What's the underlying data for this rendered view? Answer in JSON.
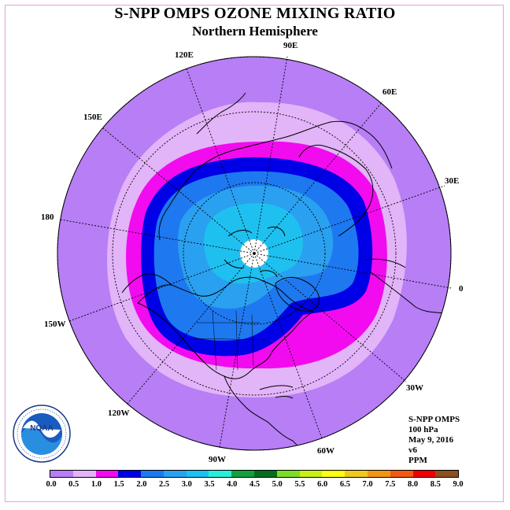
{
  "title": "S-NPP OMPS OZONE MIXING RATIO",
  "subtitle": "Northern Hemisphere",
  "longitude_labels": [
    "90E",
    "60E",
    "30E",
    "0",
    "30W",
    "60W",
    "90W",
    "120W",
    "150W",
    "180",
    "150E",
    "120E"
  ],
  "info": {
    "instrument": "S-NPP OMPS",
    "level": "100 hPa",
    "date": "May 9, 2016",
    "version": "v6",
    "units": "PPM"
  },
  "logo_text": "NOAA",
  "logo_ring_text": "NATIONAL OCEANIC AND ATMOSPHERIC ADMINISTRATION · U.S. DEPARTMENT OF COMMERCE",
  "colorbar": {
    "ticks": [
      "0.0",
      "0.5",
      "1.0",
      "1.5",
      "2.0",
      "2.5",
      "3.0",
      "3.5",
      "4.0",
      "4.5",
      "5.0",
      "5.5",
      "6.0",
      "6.5",
      "7.0",
      "7.5",
      "8.0",
      "8.5",
      "9.0"
    ],
    "colors": [
      "#b77ef6",
      "#e2b4f8",
      "#f20bee",
      "#0000e6",
      "#1e78f0",
      "#2aa0f0",
      "#1ec0f0",
      "#28f0d8",
      "#14a03c",
      "#006e1e",
      "#7cdc28",
      "#c8f014",
      "#ffff14",
      "#f0c81e",
      "#f09614",
      "#f05a14",
      "#f00000",
      "#8c501e"
    ]
  },
  "map_colors": {
    "c0": "#b77ef6",
    "c05": "#e2b4f8",
    "c1": "#f20bee",
    "c15": "#0000e6",
    "c2": "#1e78f0",
    "c25": "#2aa0f0",
    "c3": "#1ec0f0",
    "pole": "#ffffff"
  }
}
